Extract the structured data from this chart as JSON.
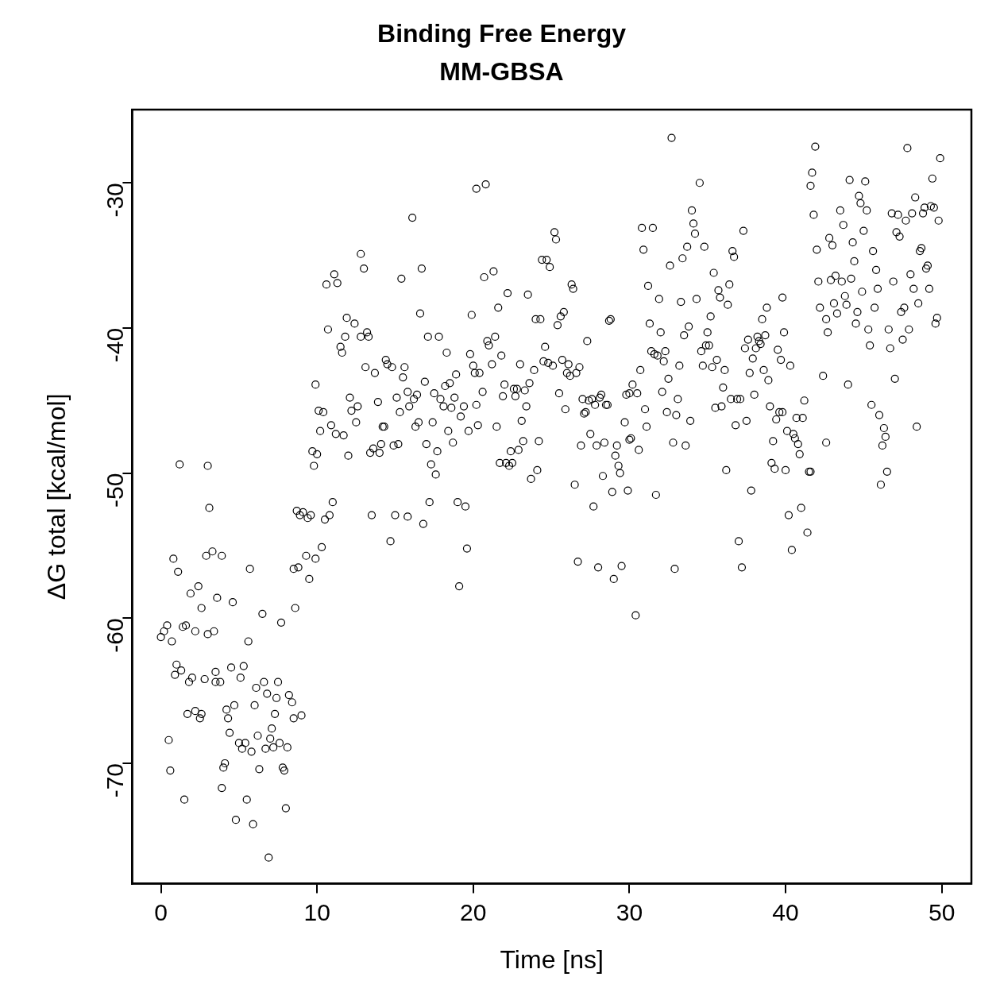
{
  "chart_data": {
    "type": "scatter",
    "title": "Binding Free Energy",
    "subtitle": "MM-GBSA",
    "xlabel": "Time [ns]",
    "ylabel": "ΔG total [kcal/mol]",
    "color": "#000000",
    "marker": "circle",
    "xlim": [
      -1.84,
      51.9
    ],
    "ylim": [
      -78.3,
      -24.95
    ],
    "xticks": [
      0,
      10,
      20,
      30,
      40,
      50
    ],
    "yticks": [
      -70,
      -60,
      -50,
      -40,
      -30
    ],
    "x": [
      0,
      0.2,
      0.4,
      0.7,
      0.8,
      0.5,
      0.6,
      0.9,
      1.0,
      1.1,
      1.2,
      1.3,
      1.4,
      1.5,
      1.6,
      1.7,
      1.8,
      1.9,
      2.0,
      2.2,
      2.2,
      2.4,
      2.5,
      2.6,
      2.6,
      2.8,
      2.9,
      3.0,
      3.0,
      3.1,
      3.3,
      3.4,
      3.5,
      3.5,
      3.6,
      3.8,
      3.9,
      3.9,
      4.0,
      4.1,
      4.2,
      4.3,
      4.4,
      4.5,
      4.6,
      4.7,
      4.8,
      5.0,
      5.1,
      5.2,
      5.3,
      5.4,
      5.5,
      5.6,
      5.7,
      5.8,
      5.9,
      6.0,
      6.1,
      6.2,
      6.3,
      6.5,
      6.6,
      6.7,
      6.8,
      6.9,
      7.0,
      7.1,
      7.2,
      7.3,
      7.4,
      7.5,
      7.6,
      7.7,
      7.8,
      7.9,
      8.0,
      8.1,
      8.2,
      8.4,
      8.5,
      8.5,
      8.6,
      8.7,
      8.8,
      8.9,
      9.0,
      9.1,
      9.3,
      9.4,
      9.5,
      9.6,
      9.7,
      9.8,
      9.9,
      9.9,
      10.0,
      10.1,
      10.2,
      10.3,
      10.4,
      10.5,
      10.6,
      10.7,
      10.8,
      10.9,
      11.0,
      11.1,
      11.2,
      11.3,
      11.5,
      11.6,
      11.7,
      11.8,
      11.9,
      12.0,
      12.1,
      12.2,
      12.4,
      12.5,
      12.6,
      12.8,
      12.8,
      13.0,
      13.1,
      13.2,
      13.3,
      13.4,
      13.5,
      13.6,
      13.7,
      13.9,
      14.0,
      14.1,
      14.2,
      14.3,
      14.4,
      14.5,
      14.7,
      14.8,
      14.9,
      15.0,
      15.1,
      15.2,
      15.3,
      15.4,
      15.5,
      15.6,
      15.8,
      15.8,
      15.9,
      16.1,
      16.2,
      16.3,
      16.4,
      16.5,
      16.6,
      16.7,
      16.8,
      16.9,
      17.0,
      17.1,
      17.2,
      17.3,
      17.4,
      17.5,
      17.6,
      17.7,
      17.8,
      17.9,
      18.1,
      18.2,
      18.3,
      18.4,
      18.5,
      18.6,
      18.7,
      18.8,
      18.9,
      19.0,
      19.1,
      19.2,
      19.4,
      19.5,
      19.6,
      19.7,
      19.8,
      19.9,
      20.0,
      20.1,
      20.2,
      20.2,
      20.3,
      20.4,
      20.6,
      20.7,
      20.8,
      20.9,
      21.0,
      21.2,
      21.3,
      21.4,
      21.5,
      21.6,
      21.7,
      21.8,
      21.9,
      22.0,
      22.1,
      22.2,
      22.3,
      22.4,
      22.5,
      22.6,
      22.7,
      22.8,
      22.9,
      23.0,
      23.1,
      23.2,
      23.3,
      23.4,
      23.5,
      23.6,
      23.7,
      23.9,
      24.0,
      24.1,
      24.2,
      24.3,
      24.4,
      24.5,
      24.6,
      24.7,
      24.8,
      24.9,
      25.1,
      25.2,
      25.3,
      25.4,
      25.5,
      25.6,
      25.7,
      25.8,
      25.9,
      26.0,
      26.1,
      26.2,
      26.3,
      26.4,
      26.5,
      26.6,
      26.7,
      26.8,
      26.9,
      27.0,
      27.1,
      27.2,
      27.3,
      27.4,
      27.5,
      27.6,
      27.7,
      27.8,
      27.9,
      28.0,
      28.1,
      28.2,
      28.3,
      28.4,
      28.5,
      28.6,
      28.7,
      28.8,
      28.9,
      29.0,
      29.1,
      29.2,
      29.3,
      29.4,
      29.5,
      29.7,
      29.8,
      29.9,
      30.0,
      30.0,
      30.1,
      30.2,
      30.4,
      30.5,
      30.6,
      30.7,
      30.8,
      30.9,
      31.0,
      31.1,
      31.2,
      31.3,
      31.4,
      31.5,
      31.6,
      31.7,
      31.8,
      31.9,
      32.0,
      32.1,
      32.2,
      32.3,
      32.4,
      32.5,
      32.6,
      32.7,
      32.8,
      32.9,
      33.0,
      33.1,
      33.2,
      33.3,
      33.4,
      33.5,
      33.6,
      33.7,
      33.8,
      33.9,
      34.0,
      34.1,
      34.2,
      34.3,
      34.5,
      34.6,
      34.7,
      34.8,
      34.9,
      35.0,
      35.1,
      35.2,
      35.3,
      35.4,
      35.5,
      35.6,
      35.7,
      35.8,
      35.9,
      36.0,
      36.1,
      36.2,
      36.3,
      36.4,
      36.5,
      36.6,
      36.7,
      36.8,
      36.9,
      37.0,
      37.1,
      37.2,
      37.3,
      37.4,
      37.5,
      37.6,
      37.7,
      37.8,
      37.9,
      38.0,
      38.1,
      38.2,
      38.3,
      38.4,
      38.5,
      38.6,
      38.7,
      38.8,
      38.9,
      39.0,
      39.1,
      39.2,
      39.3,
      39.4,
      39.5,
      39.6,
      39.7,
      39.8,
      39.8,
      39.9,
      40.0,
      40.1,
      40.2,
      40.3,
      40.4,
      40.5,
      40.6,
      40.7,
      40.8,
      40.9,
      41.0,
      41.1,
      41.2,
      41.4,
      41.5,
      41.6,
      41.6,
      41.7,
      41.8,
      41.9,
      42.0,
      42.1,
      42.2,
      42.4,
      42.6,
      42.6,
      42.7,
      42.8,
      42.9,
      43.0,
      43.1,
      43.2,
      43.3,
      43.5,
      43.6,
      43.7,
      43.8,
      43.9,
      44.0,
      44.1,
      44.2,
      44.3,
      44.4,
      44.5,
      44.6,
      44.7,
      44.8,
      44.9,
      45.0,
      45.1,
      45.2,
      45.3,
      45.4,
      45.5,
      45.6,
      45.7,
      45.8,
      45.9,
      46.0,
      46.1,
      46.2,
      46.3,
      46.4,
      46.5,
      46.6,
      46.7,
      46.8,
      46.9,
      47.0,
      47.1,
      47.2,
      47.3,
      47.4,
      47.5,
      47.6,
      47.7,
      47.8,
      47.9,
      48.0,
      48.1,
      48.2,
      48.3,
      48.4,
      48.5,
      48.6,
      48.7,
      48.8,
      48.9,
      49.0,
      49.1,
      49.2,
      49.3,
      49.4,
      49.5,
      49.6,
      49.7,
      49.8,
      49.9
    ],
    "values": [
      -61.3,
      -60.9,
      -60.5,
      -61.6,
      -55.9,
      -68.4,
      -70.5,
      -63.9,
      -63.2,
      -56.8,
      -49.4,
      -63.6,
      -60.6,
      -72.5,
      -60.5,
      -66.6,
      -64.4,
      -58.3,
      -64.1,
      -60.9,
      -66.4,
      -57.8,
      -66.9,
      -66.6,
      -59.3,
      -64.2,
      -55.7,
      -61.1,
      -49.5,
      -52.4,
      -55.4,
      -60.9,
      -63.7,
      -64.4,
      -58.6,
      -64.4,
      -55.7,
      -71.7,
      -70.3,
      -70.0,
      -66.3,
      -66.9,
      -67.9,
      -63.4,
      -58.9,
      -66.0,
      -73.9,
      -68.6,
      -64.1,
      -69.0,
      -63.3,
      -68.6,
      -72.5,
      -61.6,
      -56.6,
      -69.2,
      -74.2,
      -66.0,
      -64.8,
      -68.1,
      -70.4,
      -59.7,
      -64.4,
      -69.0,
      -65.2,
      -76.5,
      -68.3,
      -67.6,
      -68.9,
      -66.6,
      -65.5,
      -64.4,
      -68.6,
      -60.3,
      -70.3,
      -70.5,
      -73.1,
      -68.9,
      -65.3,
      -65.8,
      -66.9,
      -56.6,
      -59.3,
      -52.6,
      -56.5,
      -52.9,
      -66.7,
      -52.7,
      -55.7,
      -53.1,
      -57.3,
      -52.9,
      -48.5,
      -49.5,
      -55.9,
      -43.9,
      -48.7,
      -45.7,
      -47.1,
      -55.1,
      -45.8,
      -53.2,
      -37.0,
      -40.1,
      -52.9,
      -46.7,
      -52.0,
      -36.3,
      -47.3,
      -36.9,
      -41.3,
      -41.7,
      -47.4,
      -40.6,
      -39.3,
      -48.8,
      -44.8,
      -45.7,
      -39.7,
      -46.5,
      -45.4,
      -34.9,
      -40.6,
      -35.9,
      -42.7,
      -40.3,
      -40.6,
      -48.6,
      -52.9,
      -48.3,
      -43.1,
      -45.1,
      -48.6,
      -48.0,
      -46.8,
      -46.8,
      -42.2,
      -42.5,
      -54.7,
      -42.7,
      -48.1,
      -52.9,
      -44.8,
      -48.0,
      -45.8,
      -36.6,
      -43.4,
      -42.7,
      -53.0,
      -44.4,
      -45.4,
      -32.4,
      -44.9,
      -46.8,
      -44.6,
      -46.5,
      -39.0,
      -35.9,
      -53.5,
      -43.7,
      -48.0,
      -40.6,
      -52.0,
      -49.4,
      -46.5,
      -44.5,
      -50.1,
      -48.5,
      -40.6,
      -44.9,
      -45.4,
      -44.0,
      -41.7,
      -47.1,
      -43.8,
      -45.5,
      -47.9,
      -44.8,
      -43.2,
      -52.0,
      -57.8,
      -46.1,
      -45.4,
      -52.3,
      -55.2,
      -47.1,
      -41.8,
      -39.1,
      -42.6,
      -43.1,
      -45.3,
      -30.4,
      -46.7,
      -43.1,
      -44.4,
      -36.5,
      -30.1,
      -40.9,
      -41.2,
      -42.5,
      -36.1,
      -40.6,
      -46.8,
      -38.6,
      -49.3,
      -41.9,
      -44.7,
      -43.9,
      -49.3,
      -37.6,
      -49.5,
      -48.5,
      -49.3,
      -44.2,
      -44.7,
      -44.2,
      -48.4,
      -42.5,
      -46.4,
      -47.8,
      -44.3,
      -45.4,
      -37.7,
      -43.8,
      -50.4,
      -42.9,
      -39.4,
      -49.8,
      -47.8,
      -39.4,
      -35.3,
      -42.3,
      -41.3,
      -35.3,
      -42.4,
      -35.8,
      -42.6,
      -33.4,
      -33.9,
      -39.8,
      -44.5,
      -39.2,
      -42.2,
      -38.9,
      -45.6,
      -43.1,
      -42.5,
      -43.3,
      -37.0,
      -37.3,
      -50.8,
      -43.1,
      -56.1,
      -42.7,
      -48.1,
      -44.9,
      -45.9,
      -45.8,
      -40.9,
      -45.0,
      -47.3,
      -44.9,
      -52.3,
      -45.3,
      -48.1,
      -56.5,
      -44.8,
      -44.6,
      -50.2,
      -47.9,
      -45.3,
      -45.3,
      -39.5,
      -39.4,
      -51.3,
      -57.3,
      -48.8,
      -48.1,
      -49.5,
      -50.0,
      -56.4,
      -46.5,
      -44.6,
      -51.2,
      -47.7,
      -44.5,
      -47.6,
      -43.9,
      -59.8,
      -44.5,
      -48.4,
      -42.9,
      -33.1,
      -34.6,
      -45.6,
      -46.8,
      -37.1,
      -39.7,
      -41.6,
      -33.1,
      -41.8,
      -51.5,
      -41.9,
      -38.0,
      -40.3,
      -44.4,
      -42.3,
      -41.6,
      -45.8,
      -43.5,
      -35.7,
      -26.9,
      -47.9,
      -56.6,
      -46.0,
      -44.9,
      -42.6,
      -38.2,
      -35.2,
      -40.5,
      -48.1,
      -34.4,
      -39.9,
      -46.4,
      -31.9,
      -32.8,
      -33.5,
      -38.0,
      -30.0,
      -41.6,
      -42.6,
      -34.4,
      -41.2,
      -40.3,
      -41.2,
      -39.2,
      -42.7,
      -36.2,
      -45.5,
      -42.2,
      -37.4,
      -37.9,
      -45.4,
      -44.1,
      -42.9,
      -49.8,
      -38.4,
      -37.0,
      -44.9,
      -34.7,
      -35.1,
      -46.7,
      -44.9,
      -54.7,
      -44.9,
      -56.5,
      -33.3,
      -41.4,
      -46.4,
      -40.8,
      -43.1,
      -51.2,
      -42.1,
      -44.6,
      -41.4,
      -40.6,
      -40.9,
      -41.1,
      -39.4,
      -42.9,
      -40.5,
      -38.6,
      -43.6,
      -45.4,
      -49.3,
      -47.8,
      -49.7,
      -46.3,
      -41.5,
      -45.8,
      -42.2,
      -45.8,
      -37.9,
      -40.3,
      -49.8,
      -47.1,
      -52.9,
      -42.6,
      -55.3,
      -47.3,
      -47.6,
      -46.2,
      -48.0,
      -48.7,
      -52.4,
      -46.2,
      -45.0,
      -54.1,
      -49.9,
      -49.9,
      -30.2,
      -29.3,
      -32.2,
      -27.5,
      -34.6,
      -36.8,
      -38.6,
      -43.3,
      -47.9,
      -39.4,
      -40.3,
      -33.8,
      -36.7,
      -34.3,
      -38.3,
      -36.4,
      -39.0,
      -31.9,
      -36.8,
      -32.9,
      -37.8,
      -38.4,
      -43.9,
      -29.8,
      -36.6,
      -34.1,
      -35.4,
      -39.7,
      -38.9,
      -30.9,
      -31.4,
      -37.5,
      -33.3,
      -29.9,
      -31.9,
      -40.1,
      -41.2,
      -45.3,
      -34.7,
      -38.6,
      -36.0,
      -37.3,
      -46.0,
      -50.8,
      -48.1,
      -46.9,
      -47.5,
      -49.9,
      -40.1,
      -41.4,
      -32.1,
      -36.8,
      -43.5,
      -33.4,
      -32.2,
      -33.7,
      -38.9,
      -40.8,
      -38.6,
      -32.6,
      -27.6,
      -40.1,
      -36.3,
      -32.1,
      -37.3,
      -31.0,
      -46.8,
      -38.3,
      -34.7,
      -34.5,
      -32.1,
      -31.7,
      -35.9,
      -35.7,
      -37.3,
      -31.6,
      -29.7,
      -31.7,
      -39.7,
      -39.3,
      -32.6,
      -28.3
    ]
  }
}
